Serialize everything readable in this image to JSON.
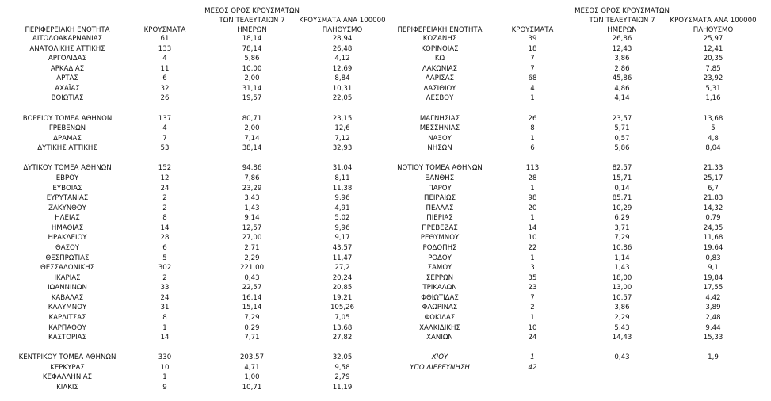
{
  "tables": [
    {
      "header": [
        [
          "ΠΕΡΙΦΕΡΕΙΑΚΗ ΕΝΟΤΗΤΑ"
        ],
        [
          "ΚΡΟΥΣΜΑΤΑ"
        ],
        [
          "ΜΕΣΟΣ ΟΡΟΣ ΚΡΟΥΣΜΑΤΩΝ",
          "ΤΩΝ ΤΕΛΕΥΤΑΙΩΝ 7",
          "ΗΜΕΡΩΝ"
        ],
        [
          "ΚΡΟΥΣΜΑΤΑ ΑΝΑ 100000",
          "ΠΛΗΘΥΣΜΟ"
        ]
      ],
      "groups": [
        [
          [
            "ΑΙΤΩΛΟΑΚΑΡΝΑΝΙΑΣ",
            "61",
            "18,14",
            "28,94"
          ],
          [
            "ΑΝΑΤΟΛΙΚΗΣ ΑΤΤΙΚΗΣ",
            "133",
            "78,14",
            "26,48"
          ],
          [
            "ΑΡΓΟΛΙΔΑΣ",
            "4",
            "5,86",
            "4,12"
          ],
          [
            "ΑΡΚΑΔΙΑΣ",
            "11",
            "10,00",
            "12,69"
          ],
          [
            "ΑΡΤΑΣ",
            "6",
            "2,00",
            "8,84"
          ],
          [
            "ΑΧΑΪΑΣ",
            "32",
            "31,14",
            "10,31"
          ],
          [
            "ΒΟΙΩΤΙΑΣ",
            "26",
            "19,57",
            "22,05"
          ]
        ],
        [
          [
            "ΒΟΡΕΙΟΥ ΤΟΜΕΑ ΑΘΗΝΩΝ",
            "137",
            "80,71",
            "23,15"
          ],
          [
            "ΓΡΕΒΕΝΩΝ",
            "4",
            "2,00",
            "12,6"
          ],
          [
            "ΔΡΑΜΑΣ",
            "7",
            "7,14",
            "7,12"
          ],
          [
            "ΔΥΤΙΚΗΣ ΑΤΤΙΚΗΣ",
            "53",
            "38,14",
            "32,93"
          ]
        ],
        [
          [
            "ΔΥΤΙΚΟΥ ΤΟΜΕΑ ΑΘΗΝΩΝ",
            "152",
            "94,86",
            "31,04"
          ],
          [
            "ΕΒΡΟΥ",
            "12",
            "7,86",
            "8,11"
          ],
          [
            "ΕΥΒΟΙΑΣ",
            "24",
            "23,29",
            "11,38"
          ],
          [
            "ΕΥΡΥΤΑΝΙΑΣ",
            "2",
            "3,43",
            "9,96"
          ],
          [
            "ΖΑΚΥΝΘΟΥ",
            "2",
            "1,43",
            "4,91"
          ],
          [
            "ΗΛΕΙΑΣ",
            "8",
            "9,14",
            "5,02"
          ],
          [
            "ΗΜΑΘΙΑΣ",
            "14",
            "12,57",
            "9,96"
          ],
          [
            "ΗΡΑΚΛΕΙΟΥ",
            "28",
            "27,00",
            "9,17"
          ],
          [
            "ΘΑΣΟΥ",
            "6",
            "2,71",
            "43,57"
          ],
          [
            "ΘΕΣΠΡΩΤΙΑΣ",
            "5",
            "2,29",
            "11,47"
          ],
          [
            "ΘΕΣΣΑΛΟΝΙΚΗΣ",
            "302",
            "221,00",
            "27,2"
          ],
          [
            "ΙΚΑΡΙΑΣ",
            "2",
            "0,43",
            "20,24"
          ],
          [
            "ΙΩΑΝΝΙΝΩΝ",
            "33",
            "22,57",
            "20,85"
          ],
          [
            "ΚΑΒΑΛΑΣ",
            "24",
            "16,14",
            "19,21"
          ],
          [
            "ΚΑΛΥΜΝΟΥ",
            "31",
            "15,14",
            "105,26"
          ],
          [
            "ΚΑΡΔΙΤΣΑΣ",
            "8",
            "7,29",
            "7,05"
          ],
          [
            "ΚΑΡΠΑΘΟΥ",
            "1",
            "0,29",
            "13,68"
          ],
          [
            "ΚΑΣΤΟΡΙΑΣ",
            "14",
            "7,71",
            "27,82"
          ]
        ],
        [
          [
            "ΚΕΝΤΡΙΚΟΥ ΤΟΜΕΑ ΑΘΗΝΩΝ",
            "330",
            "203,57",
            "32,05"
          ],
          [
            "ΚΕΡΚΥΡΑΣ",
            "10",
            "4,71",
            "9,58"
          ],
          [
            "ΚΕΦΑΛΛΗΝΙΑΣ",
            "1",
            "1,00",
            "2,79"
          ],
          [
            "ΚΙΛΚΙΣ",
            "9",
            "10,71",
            "11,19"
          ]
        ]
      ]
    },
    {
      "header": [
        [
          "ΠΕΡΙΦΕΡΕΙΑΚΗ ΕΝΟΤΗΤΑ"
        ],
        [
          "ΚΡΟΥΣΜΑΤΑ"
        ],
        [
          "ΜΕΣΟΣ ΟΡΟΣ ΚΡΟΥΣΜΑΤΩΝ",
          "ΤΩΝ ΤΕΛΕΥΤΑΙΩΝ 7",
          "ΗΜΕΡΩΝ"
        ],
        [
          "ΚΡΟΥΣΜΑΤΑ ΑΝΑ 100000",
          "ΠΛΗΘΥΣΜΟ"
        ]
      ],
      "groups": [
        [
          [
            "ΚΟΖΑΝΗΣ",
            "39",
            "26,86",
            "25,97"
          ],
          [
            "ΚΟΡΙΝΘΙΑΣ",
            "18",
            "12,43",
            "12,41"
          ],
          [
            "ΚΩ",
            "7",
            "3,86",
            "20,35"
          ],
          [
            "ΛΑΚΩΝΙΑΣ",
            "7",
            "2,86",
            "7,85"
          ],
          [
            "ΛΑΡΙΣΑΣ",
            "68",
            "45,86",
            "23,92"
          ],
          [
            "ΛΑΣΙΘΙΟΥ",
            "4",
            "4,86",
            "5,31"
          ],
          [
            "ΛΕΣΒΟΥ",
            "1",
            "4,14",
            "1,16"
          ]
        ],
        [
          [
            "ΜΑΓΝΗΣΙΑΣ",
            "26",
            "23,57",
            "13,68"
          ],
          [
            "ΜΕΣΣΗΝΙΑΣ",
            "8",
            "5,71",
            "5"
          ],
          [
            "ΝΑΞΟΥ",
            "1",
            "0,57",
            "4,8"
          ],
          [
            "ΝΗΣΩΝ",
            "6",
            "5,86",
            "8,04"
          ]
        ],
        [
          [
            "ΝΟΤΙΟΥ ΤΟΜΕΑ ΑΘΗΝΩΝ",
            "113",
            "82,57",
            "21,33"
          ],
          [
            "ΞΑΝΘΗΣ",
            "28",
            "15,71",
            "25,17"
          ],
          [
            "ΠΑΡΟΥ",
            "1",
            "0,14",
            "6,7"
          ],
          [
            "ΠΕΙΡΑΙΩΣ",
            "98",
            "85,71",
            "21,83"
          ],
          [
            "ΠΕΛΛΑΣ",
            "20",
            "10,29",
            "14,32"
          ],
          [
            "ΠΙΕΡΙΑΣ",
            "1",
            "6,29",
            "0,79"
          ],
          [
            "ΠΡΕΒΕΖΑΣ",
            "14",
            "3,71",
            "24,35"
          ],
          [
            "ΡΕΘΥΜΝΟΥ",
            "10",
            "7,29",
            "11,68"
          ],
          [
            "ΡΟΔΟΠΗΣ",
            "22",
            "10,86",
            "19,64"
          ],
          [
            "ΡΟΔΟΥ",
            "1",
            "1,14",
            "0,83"
          ],
          [
            "ΣΑΜΟΥ",
            "3",
            "1,43",
            "9,1"
          ],
          [
            "ΣΕΡΡΩΝ",
            "35",
            "18,00",
            "19,84"
          ],
          [
            "ΤΡΙΚΑΛΩΝ",
            "23",
            "13,00",
            "17,55"
          ],
          [
            "ΦΘΙΩΤΙΔΑΣ",
            "7",
            "10,57",
            "4,42"
          ],
          [
            "ΦΛΩΡΙΝΑΣ",
            "2",
            "3,86",
            "3,89"
          ],
          [
            "ΦΩΚΙΔΑΣ",
            "1",
            "2,29",
            "2,48"
          ],
          [
            "ΧΑΛΚΙΔΙΚΗΣ",
            "10",
            "5,43",
            "9,44"
          ],
          [
            "ΧΑΝΙΩΝ",
            "24",
            "14,43",
            "15,33"
          ]
        ],
        [
          [
            "ΧΙΟΥ",
            "1",
            "0,43",
            "1,9"
          ],
          [
            "ΥΠΟ ΔΙΕΡΕΥΝΗΣΗ",
            "42"
          ]
        ]
      ]
    }
  ]
}
